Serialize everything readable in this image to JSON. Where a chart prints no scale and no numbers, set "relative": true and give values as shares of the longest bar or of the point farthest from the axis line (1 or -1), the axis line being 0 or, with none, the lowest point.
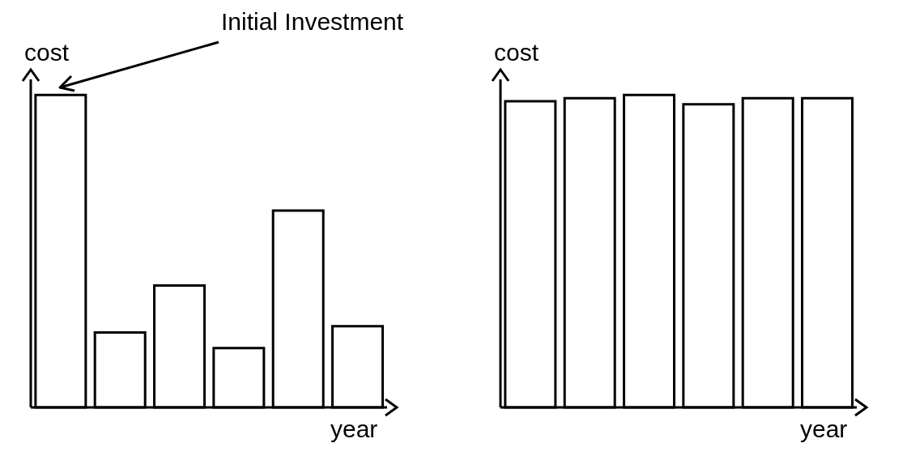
{
  "chart_data": [
    {
      "type": "bar",
      "relative": true,
      "categories": [
        null,
        null,
        null,
        null,
        null,
        null
      ],
      "values": [
        1,
        0.24,
        0.39,
        0.19,
        0.63,
        0.26
      ],
      "color": "#ffffff",
      "xlabel": "year",
      "ylabel": "cost",
      "annotations": [
        "Initial Investment"
      ]
    },
    {
      "type": "bar",
      "relative": true,
      "categories": [
        null,
        null,
        null,
        null,
        null,
        null
      ],
      "values": [
        0.98,
        0.99,
        1,
        0.97,
        0.99,
        0.99
      ],
      "color": "#ffffff",
      "xlabel": "year",
      "ylabel": "cost"
    }
  ]
}
